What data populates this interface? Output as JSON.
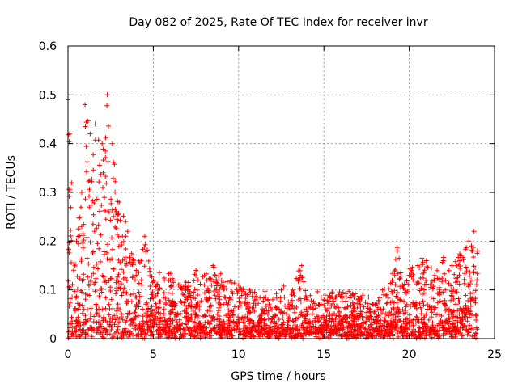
{
  "chart_data": {
    "type": "scatter",
    "title": "Day 082 of 2025, Rate Of TEC Index for receiver invr",
    "xlabel": "GPS time / hours",
    "ylabel": "ROTI / TECUs",
    "xlim": [
      0,
      25
    ],
    "ylim": [
      0,
      0.6
    ],
    "xticks": [
      0,
      5,
      10,
      15,
      20,
      25
    ],
    "yticks": [
      0,
      0.1,
      0.2,
      0.3,
      0.4,
      0.5,
      0.6
    ],
    "xtick_labels": [
      "0",
      "5",
      "10",
      "15",
      "20",
      "25"
    ],
    "ytick_labels": [
      "0",
      "0.1",
      "0.2",
      "0.3",
      "0.4",
      "0.5",
      "0.6"
    ],
    "grid": true,
    "marker": "+",
    "color": "#ff0000",
    "envelope_note": "approximate upper envelope of ROTI values by hour (data units)",
    "envelope": {
      "x": [
        0.0,
        0.1,
        0.5,
        0.8,
        1.0,
        1.3,
        1.6,
        2.0,
        2.3,
        2.6,
        3.0,
        3.5,
        4.0,
        4.5,
        5.0,
        6.0,
        7.0,
        7.5,
        8.0,
        8.5,
        9.0,
        10.0,
        11.0,
        12.0,
        12.5,
        13.0,
        13.7,
        14.0,
        15.0,
        16.0,
        17.0,
        18.0,
        18.5,
        19.0,
        19.3,
        19.6,
        20.0,
        20.5,
        21.0,
        21.5,
        22.0,
        22.5,
        23.0,
        23.5,
        23.8,
        24.0
      ],
      "y": [
        0.49,
        0.42,
        0.2,
        0.3,
        0.48,
        0.42,
        0.44,
        0.4,
        0.5,
        0.4,
        0.28,
        0.22,
        0.14,
        0.21,
        0.12,
        0.12,
        0.1,
        0.14,
        0.13,
        0.15,
        0.12,
        0.11,
        0.08,
        0.08,
        0.1,
        0.07,
        0.15,
        0.08,
        0.08,
        0.09,
        0.08,
        0.07,
        0.09,
        0.12,
        0.18,
        0.11,
        0.13,
        0.15,
        0.16,
        0.13,
        0.16,
        0.15,
        0.17,
        0.2,
        0.22,
        0.18
      ]
    },
    "baseline": 0.02
  }
}
